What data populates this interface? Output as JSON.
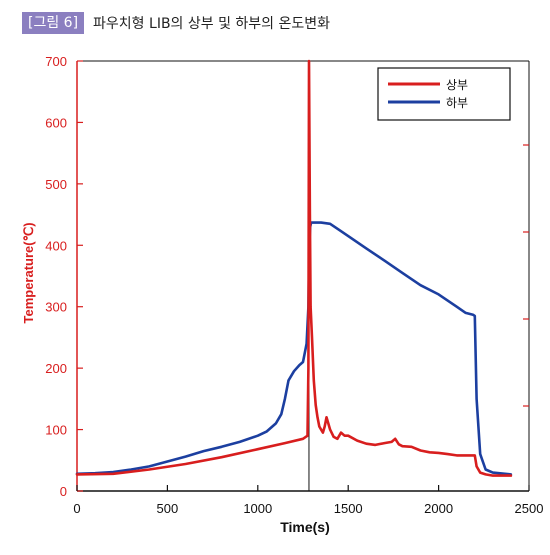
{
  "caption": {
    "tag": "[그림 6]",
    "title": "파우치형 LIB의 상부 및 하부의 온도변화"
  },
  "colors": {
    "series_top": "#d81e1e",
    "series_bottom": "#1c3fa0",
    "axis_left": "#d81e1e",
    "axis_bottom": "#111111",
    "caption_tag_bg": "#8b7fc0"
  },
  "chart_data": {
    "type": "line",
    "title": "",
    "xlabel": "Time(s)",
    "ylabel": "Temperature(℃)",
    "xlim": [
      0,
      2500
    ],
    "ylim": [
      0,
      700
    ],
    "xticks": [
      0,
      500,
      1000,
      1500,
      2000,
      2500
    ],
    "yticks": [
      0,
      100,
      200,
      300,
      400,
      500,
      600,
      700
    ],
    "grid": false,
    "legend_position": "top-right",
    "series": [
      {
        "name": "상부",
        "color": "#d81e1e",
        "points": [
          [
            0,
            27
          ],
          [
            200,
            28
          ],
          [
            400,
            35
          ],
          [
            600,
            44
          ],
          [
            800,
            55
          ],
          [
            1000,
            68
          ],
          [
            1150,
            78
          ],
          [
            1250,
            85
          ],
          [
            1275,
            90
          ],
          [
            1280,
            200
          ],
          [
            1283,
            700
          ],
          [
            1288,
            450
          ],
          [
            1292,
            300
          ],
          [
            1300,
            250
          ],
          [
            1310,
            180
          ],
          [
            1320,
            140
          ],
          [
            1330,
            120
          ],
          [
            1340,
            105
          ],
          [
            1350,
            100
          ],
          [
            1360,
            95
          ],
          [
            1370,
            105
          ],
          [
            1380,
            120
          ],
          [
            1390,
            110
          ],
          [
            1400,
            100
          ],
          [
            1420,
            88
          ],
          [
            1440,
            85
          ],
          [
            1460,
            95
          ],
          [
            1480,
            90
          ],
          [
            1500,
            90
          ],
          [
            1550,
            82
          ],
          [
            1600,
            77
          ],
          [
            1650,
            75
          ],
          [
            1700,
            78
          ],
          [
            1740,
            80
          ],
          [
            1760,
            85
          ],
          [
            1780,
            76
          ],
          [
            1800,
            73
          ],
          [
            1850,
            72
          ],
          [
            1900,
            66
          ],
          [
            1950,
            63
          ],
          [
            2000,
            62
          ],
          [
            2050,
            60
          ],
          [
            2100,
            58
          ],
          [
            2150,
            58
          ],
          [
            2200,
            58
          ],
          [
            2210,
            40
          ],
          [
            2230,
            30
          ],
          [
            2260,
            27
          ],
          [
            2300,
            25
          ],
          [
            2400,
            25
          ]
        ]
      },
      {
        "name": "하부",
        "color": "#1c3fa0",
        "points": [
          [
            0,
            28
          ],
          [
            100,
            29
          ],
          [
            200,
            31
          ],
          [
            300,
            35
          ],
          [
            400,
            40
          ],
          [
            500,
            48
          ],
          [
            600,
            56
          ],
          [
            700,
            65
          ],
          [
            800,
            72
          ],
          [
            900,
            80
          ],
          [
            1000,
            90
          ],
          [
            1050,
            97
          ],
          [
            1100,
            110
          ],
          [
            1130,
            125
          ],
          [
            1150,
            150
          ],
          [
            1170,
            180
          ],
          [
            1200,
            195
          ],
          [
            1230,
            205
          ],
          [
            1250,
            210
          ],
          [
            1270,
            240
          ],
          [
            1280,
            300
          ],
          [
            1285,
            400
          ],
          [
            1290,
            430
          ],
          [
            1295,
            437
          ],
          [
            1350,
            437
          ],
          [
            1400,
            435
          ],
          [
            1450,
            425
          ],
          [
            1500,
            415
          ],
          [
            1600,
            395
          ],
          [
            1700,
            375
          ],
          [
            1800,
            355
          ],
          [
            1900,
            335
          ],
          [
            2000,
            320
          ],
          [
            2100,
            300
          ],
          [
            2150,
            290
          ],
          [
            2190,
            287
          ],
          [
            2200,
            285
          ],
          [
            2210,
            150
          ],
          [
            2230,
            60
          ],
          [
            2260,
            35
          ],
          [
            2300,
            30
          ],
          [
            2400,
            27
          ]
        ]
      }
    ]
  }
}
